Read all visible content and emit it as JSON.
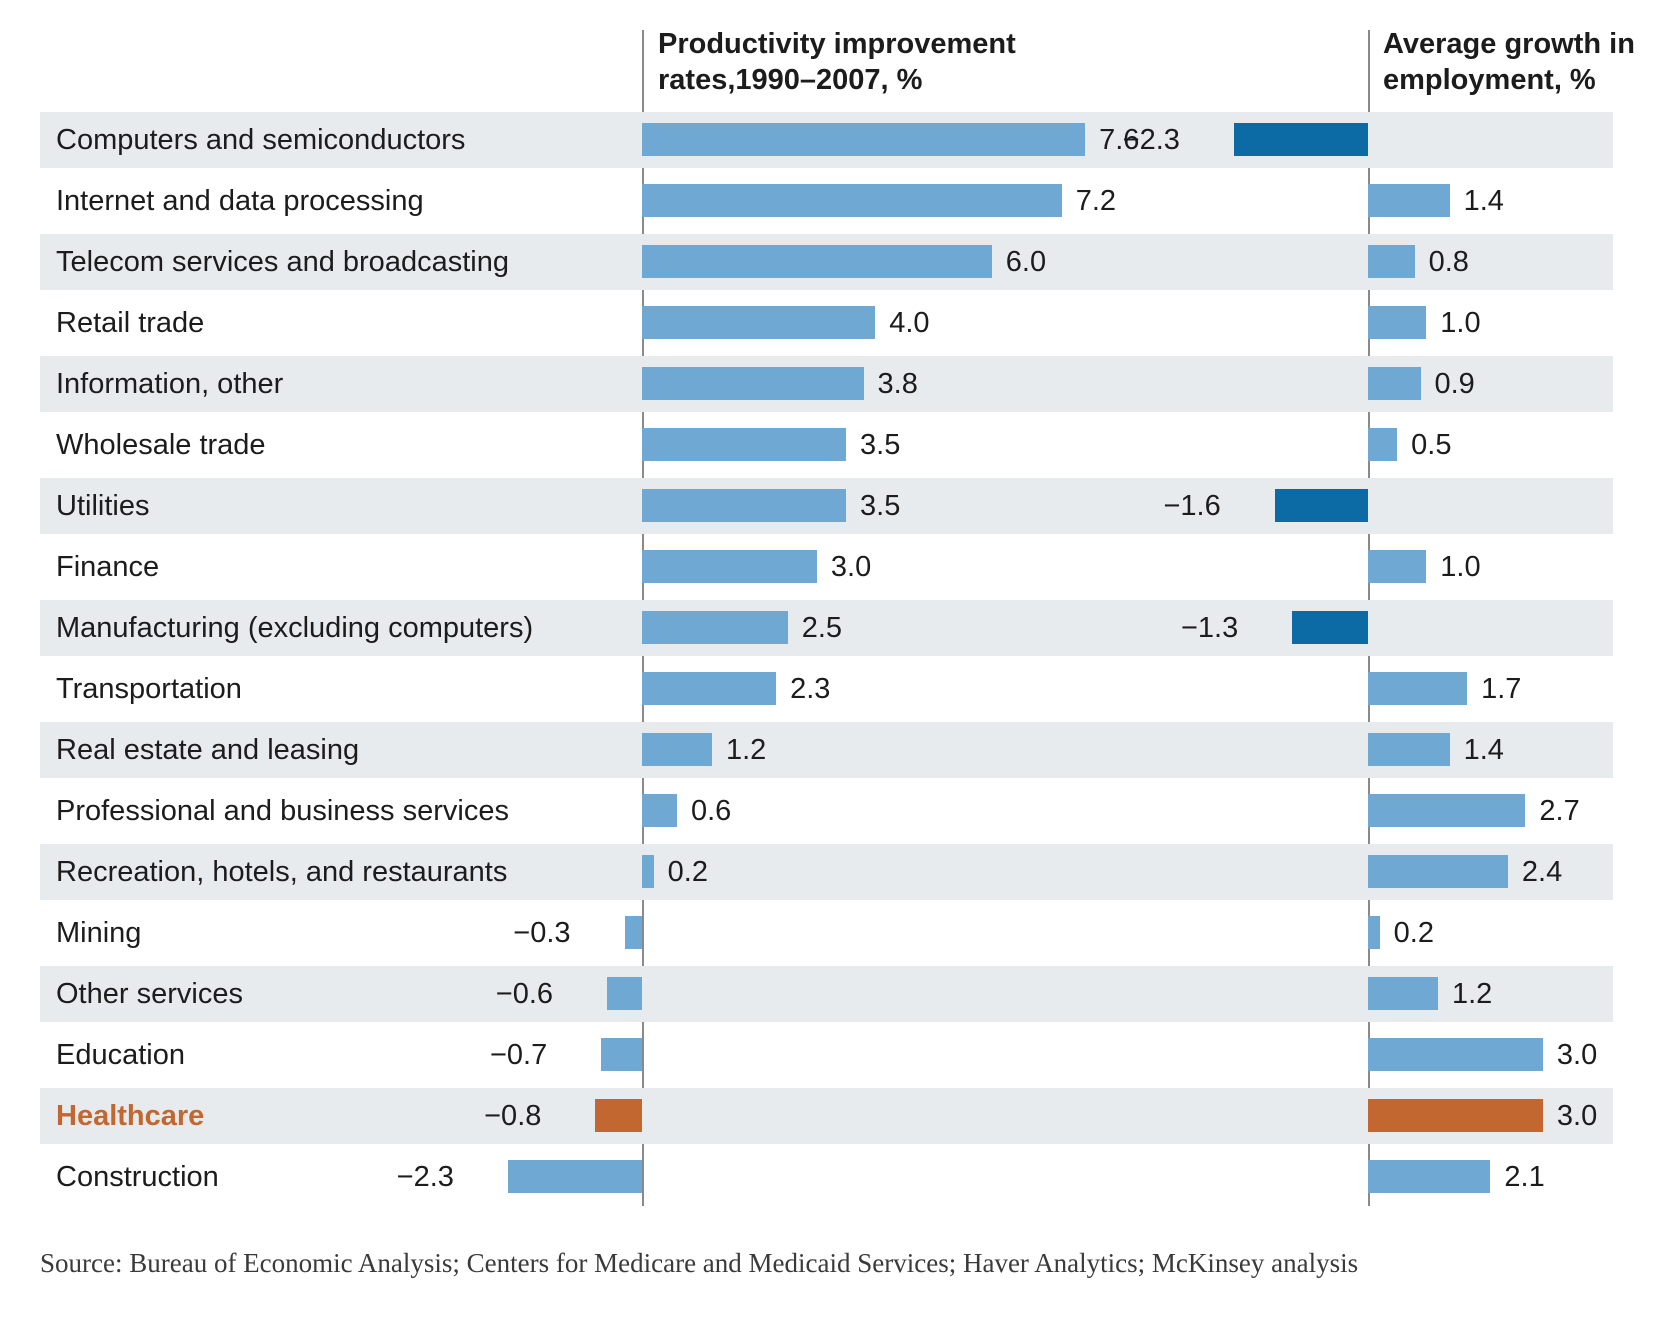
{
  "header": {
    "left_title": "Productivity improvement rates,1990–2007, %",
    "right_title": "Average growth in employment, %"
  },
  "source_line": "Source: Bureau of Economic Analysis; Centers for Medicare and Medicaid Services; Haver Analytics; McKinsey analysis",
  "colors": {
    "bar_light_blue": "#6fa9d3",
    "bar_dark_blue": "#0c6ba4",
    "bar_orange": "#c2672f",
    "row_stripe": "#e8ebee",
    "axis_line": "#8a8a8a",
    "text": "#1c1c1c",
    "healthcare_label": "#c2672f"
  },
  "chart_data": {
    "type": "bar",
    "orientation": "horizontal",
    "title": "",
    "unit": "%",
    "categories": [
      "Computers and semiconductors",
      "Internet and data processing",
      "Telecom services and broadcasting",
      "Retail trade",
      "Information, other",
      "Wholesale trade",
      "Utilities",
      "Finance",
      "Manufacturing (excluding computers)",
      "Transportation",
      "Real estate and leasing",
      "Professional and business services",
      "Recreation, hotels, and restaurants",
      "Mining",
      "Other services",
      "Education",
      "Healthcare",
      "Construction"
    ],
    "highlight_category": "Healthcare",
    "series": [
      {
        "name": "Productivity improvement rates,1990–2007, %",
        "values": [
          7.6,
          7.2,
          6.0,
          4.0,
          3.8,
          3.5,
          3.5,
          3.0,
          2.5,
          2.3,
          1.2,
          0.6,
          0.2,
          -0.3,
          -0.6,
          -0.7,
          -0.8,
          -2.3
        ],
        "labels": [
          "7.6",
          "7.2",
          "6.0",
          "4.0",
          "3.8",
          "3.5",
          "3.5",
          "3.0",
          "2.5",
          "2.3",
          "1.2",
          "0.6",
          "0.2",
          "−0.3",
          "−0.6",
          "−0.7",
          "−0.8",
          "−2.3"
        ]
      },
      {
        "name": "Average growth in employment, %",
        "values": [
          -2.3,
          1.4,
          0.8,
          1.0,
          0.9,
          0.5,
          -1.6,
          1.0,
          -1.3,
          1.7,
          1.4,
          2.7,
          2.4,
          0.2,
          1.2,
          3.0,
          3.0,
          2.1
        ],
        "labels": [
          "−2.3",
          "1.4",
          "0.8",
          "1.0",
          "0.9",
          "0.5",
          "−1.6",
          "1.0",
          "−1.3",
          "1.7",
          "1.4",
          "2.7",
          "2.4",
          "0.2",
          "1.2",
          "3.0",
          "3.0",
          "2.1"
        ]
      }
    ],
    "style_notes": {
      "negative_employment_bars": "dark blue",
      "highlight_row_bars": "orange",
      "row_striping": "alternating light gray starting with first row",
      "legend": "none",
      "grid": "off"
    }
  }
}
